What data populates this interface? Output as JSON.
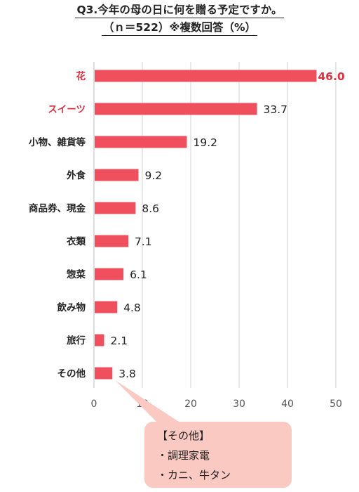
{
  "title": {
    "line1": "Q3.今年の母の日に何を贈る予定ですか。",
    "line2": "（ｎ＝522）※複数回答（%）"
  },
  "colors": {
    "bar": "#f0505e",
    "highlight_label": "#e0303f",
    "callout_bg": "#f9c9c2",
    "grid": "#d0d0d0"
  },
  "chart_data": {
    "type": "bar",
    "orientation": "horizontal",
    "title": "Q3.今年の母の日に何を贈る予定ですか。（ｎ＝522）※複数回答（%）",
    "categories": [
      "花",
      "スイーツ",
      "小物、雑貨等",
      "外食",
      "商品券、現金",
      "衣類",
      "惣菜",
      "飲み物",
      "旅行",
      "その他"
    ],
    "values": [
      46.0,
      33.7,
      19.2,
      9.2,
      8.6,
      7.1,
      6.1,
      4.8,
      2.1,
      3.8
    ],
    "value_labels": [
      "46.0",
      "33.7",
      "19.2",
      "9.2",
      "8.6",
      "7.1",
      "6.1",
      "4.8",
      "2.1",
      "3.8"
    ],
    "highlighted": [
      0,
      1
    ],
    "xlim": [
      0,
      50
    ],
    "xticks": [
      0,
      10,
      20,
      30,
      40,
      50
    ],
    "xlabel": "",
    "ylabel": "",
    "grid": "vertical"
  },
  "callout": {
    "lines": [
      "【その他】",
      "・調理家電",
      "・カニ、牛タン"
    ]
  }
}
